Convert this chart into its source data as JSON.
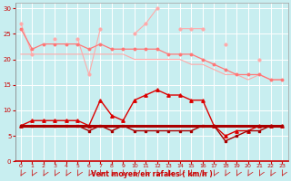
{
  "x": [
    0,
    1,
    2,
    3,
    4,
    5,
    6,
    7,
    8,
    9,
    10,
    11,
    12,
    13,
    14,
    15,
    16,
    17,
    18,
    19,
    20,
    21,
    22,
    23
  ],
  "s1_y": [
    27,
    21,
    null,
    24,
    null,
    24,
    17,
    26,
    null,
    null,
    25,
    27,
    30,
    null,
    26,
    26,
    26,
    null,
    23,
    null,
    null,
    20,
    null,
    null
  ],
  "s2_y": [
    26,
    22,
    23,
    23,
    23,
    23,
    22,
    23,
    22,
    22,
    22,
    22,
    22,
    21,
    21,
    21,
    20,
    19,
    18,
    17,
    17,
    17,
    16,
    16
  ],
  "s3_y": [
    21,
    21,
    21,
    21,
    21,
    21,
    21,
    21,
    21,
    21,
    20,
    20,
    20,
    20,
    20,
    19,
    19,
    18,
    17,
    17,
    16,
    17,
    16,
    16
  ],
  "s4_y": [
    7,
    8,
    8,
    8,
    8,
    8,
    7,
    12,
    9,
    8,
    12,
    13,
    14,
    13,
    13,
    12,
    12,
    7,
    5,
    6,
    6,
    7,
    7,
    7
  ],
  "s5_y": [
    7,
    7,
    7,
    7,
    7,
    7,
    6,
    7,
    6,
    7,
    6,
    6,
    6,
    6,
    6,
    6,
    7,
    7,
    4,
    5,
    6,
    6,
    7,
    7
  ],
  "s6_y": [
    7,
    7,
    7,
    7,
    7,
    7,
    7,
    7,
    7,
    7,
    7,
    7,
    7,
    7,
    7,
    7,
    7,
    7,
    7,
    7,
    7,
    7,
    7,
    7
  ],
  "ylim": [
    0,
    31
  ],
  "yticks": [
    0,
    5,
    10,
    15,
    20,
    25,
    30
  ],
  "xticks": [
    0,
    1,
    2,
    3,
    4,
    5,
    6,
    7,
    8,
    9,
    10,
    11,
    12,
    13,
    14,
    15,
    16,
    17,
    18,
    19,
    20,
    21,
    22,
    23
  ],
  "xlabel": "Vent moyen/en rafales ( km/h )",
  "bg_color": "#c8eef0",
  "grid_color": "#ffffff",
  "color_light_pink": "#ffaaaa",
  "color_pink": "#ff7777",
  "color_red": "#dd0000",
  "color_dark_red": "#aa0000"
}
